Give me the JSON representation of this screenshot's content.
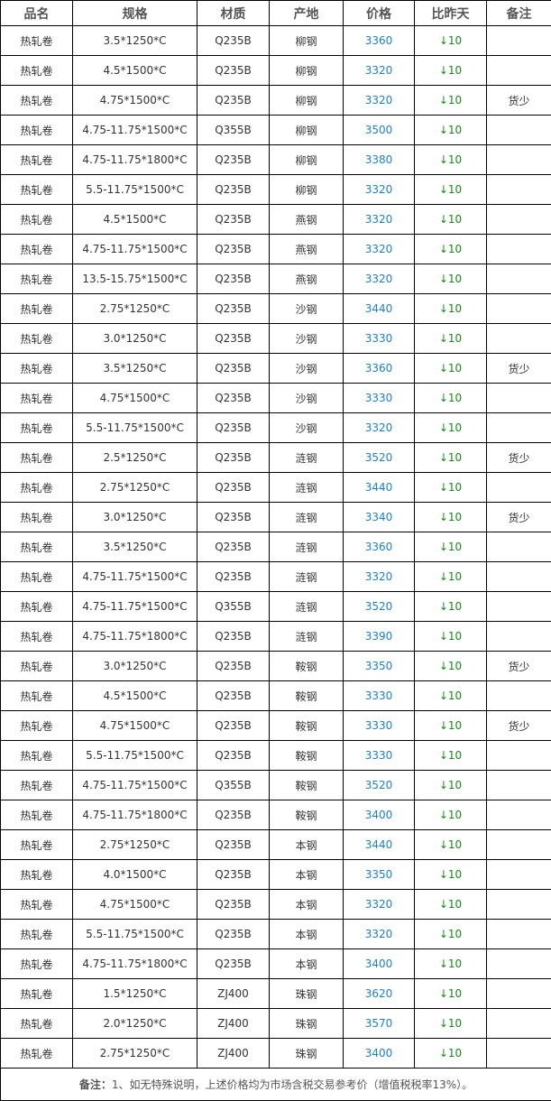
{
  "headers": [
    "品名",
    "规格",
    "材质",
    "产地",
    "价格",
    "比昨天",
    "备注"
  ],
  "colors": {
    "price": "#1e7fc8",
    "change_down": "#1a8a1a"
  },
  "change_icon": "arrow-down-icon",
  "rows": [
    [
      "热轧卷",
      "3.5*1250*C",
      "Q235B",
      "柳钢",
      "3360",
      "↓10",
      ""
    ],
    [
      "热轧卷",
      "4.5*1500*C",
      "Q235B",
      "柳钢",
      "3320",
      "↓10",
      ""
    ],
    [
      "热轧卷",
      "4.75*1500*C",
      "Q235B",
      "柳钢",
      "3320",
      "↓10",
      "货少"
    ],
    [
      "热轧卷",
      "4.75-11.75*1500*C",
      "Q355B",
      "柳钢",
      "3500",
      "↓10",
      ""
    ],
    [
      "热轧卷",
      "4.75-11.75*1800*C",
      "Q235B",
      "柳钢",
      "3380",
      "↓10",
      ""
    ],
    [
      "热轧卷",
      "5.5-11.75*1500*C",
      "Q235B",
      "柳钢",
      "3320",
      "↓10",
      ""
    ],
    [
      "热轧卷",
      "4.5*1500*C",
      "Q235B",
      "燕钢",
      "3320",
      "↓10",
      ""
    ],
    [
      "热轧卷",
      "4.75-11.75*1500*C",
      "Q235B",
      "燕钢",
      "3320",
      "↓10",
      ""
    ],
    [
      "热轧卷",
      "13.5-15.75*1500*C",
      "Q235B",
      "燕钢",
      "3320",
      "↓10",
      ""
    ],
    [
      "热轧卷",
      "2.75*1250*C",
      "Q235B",
      "沙钢",
      "3440",
      "↓10",
      ""
    ],
    [
      "热轧卷",
      "3.0*1250*C",
      "Q235B",
      "沙钢",
      "3330",
      "↓10",
      ""
    ],
    [
      "热轧卷",
      "3.5*1250*C",
      "Q235B",
      "沙钢",
      "3360",
      "↓10",
      "货少"
    ],
    [
      "热轧卷",
      "4.75*1500*C",
      "Q235B",
      "沙钢",
      "3330",
      "↓10",
      ""
    ],
    [
      "热轧卷",
      "5.5-11.75*1500*C",
      "Q235B",
      "沙钢",
      "3320",
      "↓10",
      ""
    ],
    [
      "热轧卷",
      "2.5*1250*C",
      "Q235B",
      "涟钢",
      "3520",
      "↓10",
      "货少"
    ],
    [
      "热轧卷",
      "2.75*1250*C",
      "Q235B",
      "涟钢",
      "3440",
      "↓10",
      ""
    ],
    [
      "热轧卷",
      "3.0*1250*C",
      "Q235B",
      "涟钢",
      "3340",
      "↓10",
      "货少"
    ],
    [
      "热轧卷",
      "3.5*1250*C",
      "Q235B",
      "涟钢",
      "3360",
      "↓10",
      ""
    ],
    [
      "热轧卷",
      "4.75-11.75*1500*C",
      "Q235B",
      "涟钢",
      "3320",
      "↓10",
      ""
    ],
    [
      "热轧卷",
      "4.75-11.75*1500*C",
      "Q355B",
      "涟钢",
      "3520",
      "↓10",
      ""
    ],
    [
      "热轧卷",
      "4.75-11.75*1800*C",
      "Q235B",
      "涟钢",
      "3390",
      "↓10",
      ""
    ],
    [
      "热轧卷",
      "3.0*1250*C",
      "Q235B",
      "鞍钢",
      "3350",
      "↓10",
      "货少"
    ],
    [
      "热轧卷",
      "4.5*1500*C",
      "Q235B",
      "鞍钢",
      "3330",
      "↓10",
      ""
    ],
    [
      "热轧卷",
      "4.75*1500*C",
      "Q235B",
      "鞍钢",
      "3330",
      "↓10",
      "货少"
    ],
    [
      "热轧卷",
      "5.5-11.75*1500*C",
      "Q235B",
      "鞍钢",
      "3330",
      "↓10",
      ""
    ],
    [
      "热轧卷",
      "4.75-11.75*1500*C",
      "Q355B",
      "鞍钢",
      "3520",
      "↓10",
      ""
    ],
    [
      "热轧卷",
      "4.75-11.75*1800*C",
      "Q235B",
      "鞍钢",
      "3400",
      "↓10",
      ""
    ],
    [
      "热轧卷",
      "2.75*1250*C",
      "Q235B",
      "本钢",
      "3440",
      "↓10",
      ""
    ],
    [
      "热轧卷",
      "4.0*1500*C",
      "Q235B",
      "本钢",
      "3350",
      "↓10",
      ""
    ],
    [
      "热轧卷",
      "4.75*1500*C",
      "Q235B",
      "本钢",
      "3320",
      "↓10",
      ""
    ],
    [
      "热轧卷",
      "5.5-11.75*1500*C",
      "Q235B",
      "本钢",
      "3320",
      "↓10",
      ""
    ],
    [
      "热轧卷",
      "4.75-11.75*1800*C",
      "Q235B",
      "本钢",
      "3400",
      "↓10",
      ""
    ],
    [
      "热轧卷",
      "1.5*1250*C",
      "ZJ400",
      "珠钢",
      "3620",
      "↓10",
      ""
    ],
    [
      "热轧卷",
      "2.0*1250*C",
      "ZJ400",
      "珠钢",
      "3570",
      "↓10",
      ""
    ],
    [
      "热轧卷",
      "2.75*1250*C",
      "ZJ400",
      "珠钢",
      "3400",
      "↓10",
      ""
    ]
  ],
  "footer": {
    "label": "备注：",
    "text": "1、如无特殊说明，上述价格均为市场含税交易参考价（增值税税率13%）。"
  }
}
